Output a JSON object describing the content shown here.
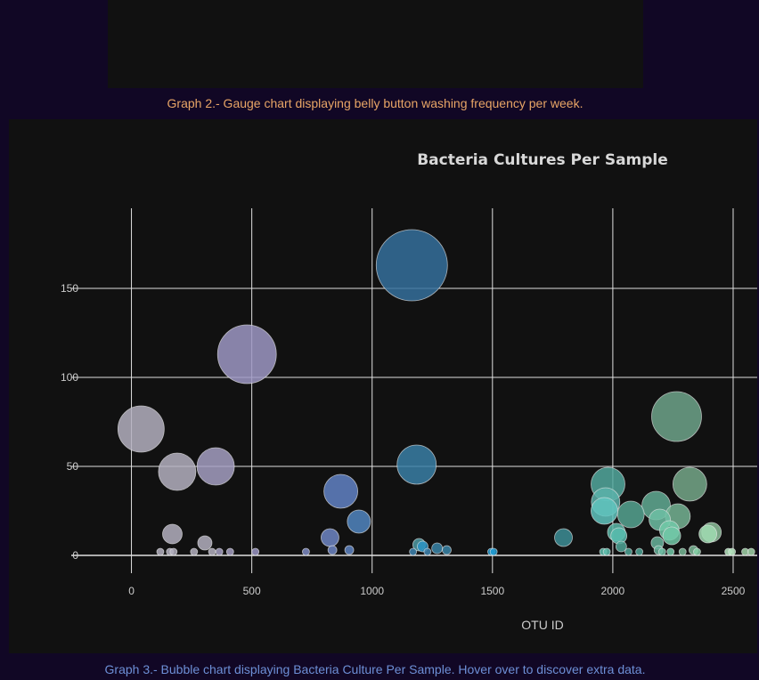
{
  "captions": {
    "graph2": "Graph 2.- Gauge chart displaying belly button washing frequency per week.",
    "graph3": "Graph 3.- Bubble chart displaying Bacteria Culture Per Sample. Hover over to discover extra data."
  },
  "chart_data": {
    "type": "scatter",
    "title": "Bacteria Cultures Per Sample",
    "xlabel": "OTU ID",
    "ylabel": "",
    "xlim": [
      -250,
      2600
    ],
    "ylim": [
      -10,
      195
    ],
    "xticks": [
      0,
      500,
      1000,
      1500,
      2000,
      2500
    ],
    "yticks": [
      0,
      50,
      100,
      150
    ],
    "grid": true,
    "colors": {
      "grid": "#e0e0e0",
      "tick_text": "#cccccc",
      "title_text": "#d8d8d8"
    },
    "points": [
      {
        "x": 40,
        "y": 71,
        "r": 26,
        "color": "#b4b0bf"
      },
      {
        "x": 120,
        "y": 2,
        "r": 4,
        "color": "#b4b0bf"
      },
      {
        "x": 160,
        "y": 2,
        "r": 4,
        "color": "#b4b0bf"
      },
      {
        "x": 170,
        "y": 12,
        "r": 11,
        "color": "#b4b0bf"
      },
      {
        "x": 175,
        "y": 2,
        "r": 4,
        "color": "#b4b0bf"
      },
      {
        "x": 190,
        "y": 47,
        "r": 21,
        "color": "#b4b0bf"
      },
      {
        "x": 260,
        "y": 2,
        "r": 4,
        "color": "#b4b0bf"
      },
      {
        "x": 305,
        "y": 7,
        "r": 8,
        "color": "#b4b0bf"
      },
      {
        "x": 335,
        "y": 2,
        "r": 4,
        "color": "#b4b0bf"
      },
      {
        "x": 350,
        "y": 50,
        "r": 21,
        "color": "#a49fc2"
      },
      {
        "x": 365,
        "y": 2,
        "r": 4,
        "color": "#a49fc2"
      },
      {
        "x": 410,
        "y": 2,
        "r": 4,
        "color": "#a49fc2"
      },
      {
        "x": 480,
        "y": 113,
        "r": 33,
        "color": "#9e98c4"
      },
      {
        "x": 515,
        "y": 2,
        "r": 4,
        "color": "#9a95c3"
      },
      {
        "x": 725,
        "y": 2,
        "r": 4,
        "color": "#7f8cc4"
      },
      {
        "x": 825,
        "y": 10,
        "r": 10,
        "color": "#6f86c4"
      },
      {
        "x": 835,
        "y": 3,
        "r": 5,
        "color": "#6f86c4"
      },
      {
        "x": 870,
        "y": 36,
        "r": 19,
        "color": "#6283c5"
      },
      {
        "x": 905,
        "y": 3,
        "r": 5,
        "color": "#5f85c3"
      },
      {
        "x": 945,
        "y": 19,
        "r": 13,
        "color": "#5186c1"
      },
      {
        "x": 1165,
        "y": 163,
        "r": 40,
        "color": "#35709c"
      },
      {
        "x": 1170,
        "y": 2,
        "r": 4,
        "color": "#3f85b0"
      },
      {
        "x": 1185,
        "y": 51,
        "r": 22,
        "color": "#3a7fa6"
      },
      {
        "x": 1195,
        "y": 6,
        "r": 7,
        "color": "#4d9aa3"
      },
      {
        "x": 1210,
        "y": 5,
        "r": 6,
        "color": "#2a93c4"
      },
      {
        "x": 1230,
        "y": 2,
        "r": 4,
        "color": "#3f85b0"
      },
      {
        "x": 1270,
        "y": 4,
        "r": 6,
        "color": "#3a85a8"
      },
      {
        "x": 1310,
        "y": 3,
        "r": 5,
        "color": "#3a85a8"
      },
      {
        "x": 1495,
        "y": 2,
        "r": 4,
        "color": "#1f9ad1"
      },
      {
        "x": 1505,
        "y": 2,
        "r": 4,
        "color": "#1f9ad1"
      },
      {
        "x": 1795,
        "y": 10,
        "r": 10,
        "color": "#3d8e97"
      },
      {
        "x": 1960,
        "y": 2,
        "r": 4,
        "color": "#5ebfae"
      },
      {
        "x": 1965,
        "y": 25,
        "r": 15,
        "color": "#60c4be"
      },
      {
        "x": 1970,
        "y": 30,
        "r": 16,
        "color": "#5cb2aa"
      },
      {
        "x": 1975,
        "y": 2,
        "r": 4,
        "color": "#5ebfae"
      },
      {
        "x": 1980,
        "y": 40,
        "r": 19,
        "color": "#52a89e"
      },
      {
        "x": 2015,
        "y": 13,
        "r": 10,
        "color": "#5ab8a8"
      },
      {
        "x": 2025,
        "y": 11,
        "r": 9,
        "color": "#58bcae"
      },
      {
        "x": 2035,
        "y": 5,
        "r": 6,
        "color": "#4fa597"
      },
      {
        "x": 2065,
        "y": 2,
        "r": 4,
        "color": "#4fa597"
      },
      {
        "x": 2075,
        "y": 23,
        "r": 15,
        "color": "#56a492"
      },
      {
        "x": 2110,
        "y": 2,
        "r": 4,
        "color": "#4fa597"
      },
      {
        "x": 2180,
        "y": 28,
        "r": 16,
        "color": "#61ab94"
      },
      {
        "x": 2185,
        "y": 7,
        "r": 7,
        "color": "#68b49c"
      },
      {
        "x": 2190,
        "y": 3,
        "r": 5,
        "color": "#68b49c"
      },
      {
        "x": 2195,
        "y": 20,
        "r": 12,
        "color": "#6fc0a4"
      },
      {
        "x": 2205,
        "y": 2,
        "r": 4,
        "color": "#6fc0a4"
      },
      {
        "x": 2235,
        "y": 14,
        "r": 11,
        "color": "#72c9a8"
      },
      {
        "x": 2240,
        "y": 2,
        "r": 4,
        "color": "#72c9a8"
      },
      {
        "x": 2245,
        "y": 11,
        "r": 10,
        "color": "#72c9a8"
      },
      {
        "x": 2265,
        "y": 78,
        "r": 28,
        "color": "#6ea58b"
      },
      {
        "x": 2270,
        "y": 22,
        "r": 14,
        "color": "#75b494"
      },
      {
        "x": 2290,
        "y": 2,
        "r": 4,
        "color": "#78b897"
      },
      {
        "x": 2320,
        "y": 40,
        "r": 19,
        "color": "#75a88a"
      },
      {
        "x": 2335,
        "y": 3,
        "r": 5,
        "color": "#7db898"
      },
      {
        "x": 2350,
        "y": 2,
        "r": 4,
        "color": "#86d2a8"
      },
      {
        "x": 2395,
        "y": 12,
        "r": 10,
        "color": "#a0dbb2"
      },
      {
        "x": 2410,
        "y": 13,
        "r": 11,
        "color": "#8cc09a"
      },
      {
        "x": 2480,
        "y": 2,
        "r": 4,
        "color": "#b6e6c0"
      },
      {
        "x": 2495,
        "y": 2,
        "r": 4,
        "color": "#b6e6c0"
      },
      {
        "x": 2550,
        "y": 2,
        "r": 4,
        "color": "#a2d4a9"
      },
      {
        "x": 2575,
        "y": 2,
        "r": 4,
        "color": "#a2d4a9"
      }
    ]
  }
}
